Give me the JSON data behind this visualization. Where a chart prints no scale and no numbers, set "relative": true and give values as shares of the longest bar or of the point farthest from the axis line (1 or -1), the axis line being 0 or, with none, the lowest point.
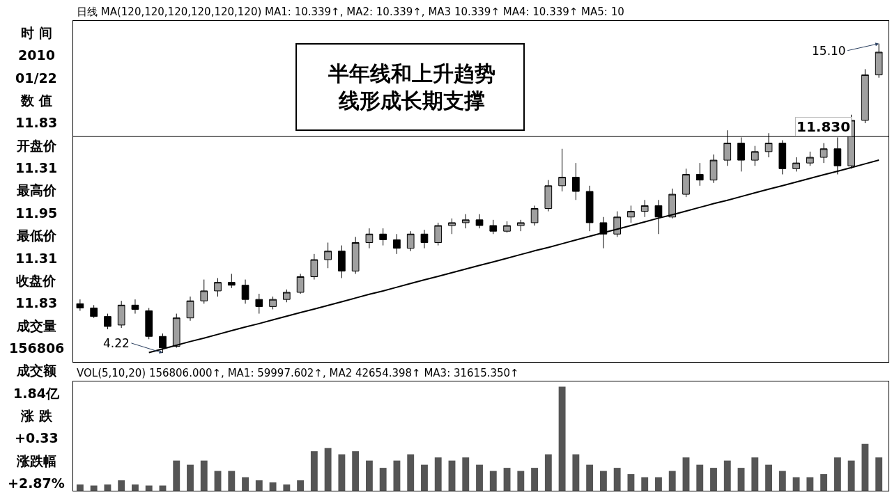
{
  "chart_data": [
    {
      "type": "other",
      "annotations": [
        "时 间",
        "2010",
        "01/22",
        "数 值",
        "11.83",
        "开盘价",
        "11.31",
        "最高价",
        "11.95",
        "最低价",
        "11.31",
        "收盘价",
        "11.83",
        "成交量",
        "156806",
        "成交额",
        "1.84亿",
        "涨 跌",
        "+0.33",
        "涨跌幅",
        "+2.87%"
      ]
    },
    {
      "type": "candlestick",
      "color": "#000000",
      "tick_labels": false,
      "ylim": [
        3.9,
        15.9
      ],
      "categories": [
        null,
        null,
        null,
        null,
        null,
        null,
        null,
        null,
        null,
        null,
        null,
        null,
        null,
        null,
        null,
        null,
        null,
        null,
        null,
        null,
        null,
        null,
        null,
        null,
        null,
        null,
        null,
        null,
        null,
        null,
        null,
        null,
        null,
        null,
        null,
        null,
        null,
        null,
        null,
        null,
        null,
        null,
        null,
        null,
        null,
        null,
        null,
        null,
        null,
        null,
        null,
        null,
        null,
        null,
        null,
        null,
        null,
        null,
        null
      ],
      "ohlc": [
        [
          5.95,
          6.1,
          5.7,
          5.8
        ],
        [
          5.8,
          5.9,
          5.45,
          5.5
        ],
        [
          5.5,
          5.6,
          5.05,
          5.15
        ],
        [
          5.2,
          6.05,
          5.1,
          5.9
        ],
        [
          5.9,
          6.1,
          5.6,
          5.75
        ],
        [
          5.7,
          5.8,
          4.7,
          4.8
        ],
        [
          4.8,
          4.9,
          4.22,
          4.4
        ],
        [
          4.45,
          5.6,
          4.4,
          5.45
        ],
        [
          5.45,
          6.2,
          5.35,
          6.05
        ],
        [
          6.05,
          6.8,
          5.95,
          6.4
        ],
        [
          6.4,
          6.85,
          6.2,
          6.7
        ],
        [
          6.7,
          7.0,
          6.5,
          6.6
        ],
        [
          6.6,
          6.8,
          5.95,
          6.1
        ],
        [
          6.1,
          6.3,
          5.6,
          5.85
        ],
        [
          5.85,
          6.2,
          5.75,
          6.1
        ],
        [
          6.1,
          6.45,
          6.0,
          6.35
        ],
        [
          6.35,
          7.0,
          6.3,
          6.9
        ],
        [
          6.9,
          7.7,
          6.8,
          7.5
        ],
        [
          7.5,
          8.1,
          7.2,
          7.8
        ],
        [
          7.8,
          8.0,
          6.85,
          7.1
        ],
        [
          7.1,
          8.3,
          7.0,
          8.1
        ],
        [
          8.1,
          8.6,
          7.9,
          8.4
        ],
        [
          8.4,
          8.6,
          8.0,
          8.2
        ],
        [
          8.2,
          8.4,
          7.7,
          7.9
        ],
        [
          7.9,
          8.5,
          7.8,
          8.4
        ],
        [
          8.4,
          8.55,
          7.9,
          8.1
        ],
        [
          8.1,
          8.8,
          8.0,
          8.7
        ],
        [
          8.7,
          8.95,
          8.4,
          8.8
        ],
        [
          8.8,
          9.1,
          8.6,
          8.9
        ],
        [
          8.9,
          9.1,
          8.6,
          8.7
        ],
        [
          8.7,
          8.9,
          8.4,
          8.5
        ],
        [
          8.5,
          8.85,
          8.45,
          8.7
        ],
        [
          8.7,
          8.9,
          8.5,
          8.8
        ],
        [
          8.8,
          9.4,
          8.7,
          9.3
        ],
        [
          9.3,
          10.3,
          9.2,
          10.1
        ],
        [
          10.1,
          11.4,
          9.9,
          10.4
        ],
        [
          10.4,
          10.9,
          9.6,
          9.9
        ],
        [
          9.9,
          10.1,
          8.5,
          8.8
        ],
        [
          8.8,
          9.0,
          7.9,
          8.4
        ],
        [
          8.4,
          9.2,
          8.3,
          9.0
        ],
        [
          9.0,
          9.4,
          8.8,
          9.2
        ],
        [
          9.2,
          9.6,
          9.0,
          9.4
        ],
        [
          9.4,
          9.6,
          8.4,
          9.0
        ],
        [
          9.0,
          10.0,
          8.95,
          9.8
        ],
        [
          9.8,
          10.7,
          9.7,
          10.5
        ],
        [
          10.5,
          10.9,
          10.1,
          10.3
        ],
        [
          10.3,
          11.2,
          10.2,
          11.0
        ],
        [
          11.0,
          12.05,
          10.8,
          11.6
        ],
        [
          11.6,
          11.8,
          10.6,
          11.0
        ],
        [
          11.0,
          11.5,
          10.8,
          11.3
        ],
        [
          11.3,
          11.95,
          11.1,
          11.6
        ],
        [
          11.6,
          11.7,
          10.5,
          10.7
        ],
        [
          10.7,
          11.1,
          10.6,
          10.9
        ],
        [
          10.9,
          11.3,
          10.8,
          11.1
        ],
        [
          11.1,
          11.6,
          10.9,
          11.4
        ],
        [
          11.4,
          11.8,
          10.5,
          10.8
        ],
        [
          10.8,
          12.6,
          10.7,
          12.4
        ],
        [
          12.4,
          14.2,
          12.3,
          14.0
        ],
        [
          14.0,
          15.1,
          13.9,
          14.8
        ]
      ],
      "series": [
        {
          "type": "line",
          "color": "#000000",
          "values": [
            null,
            null,
            null,
            null,
            null,
            4.23,
            4.36,
            4.49,
            4.62,
            4.74,
            4.87,
            5.0,
            5.13,
            5.25,
            5.38,
            5.51,
            5.64,
            5.76,
            5.89,
            6.02,
            6.15,
            6.28,
            6.4,
            6.53,
            6.66,
            6.79,
            6.91,
            7.04,
            7.17,
            7.3,
            7.42,
            7.55,
            7.68,
            7.81,
            7.93,
            8.06,
            8.19,
            8.32,
            8.45,
            8.57,
            8.7,
            8.83,
            8.96,
            9.08,
            9.21,
            9.34,
            9.47,
            9.59,
            9.72,
            9.85,
            9.98,
            10.1,
            10.23,
            10.36,
            10.49,
            10.61,
            10.74,
            10.87,
            11.0
          ]
        }
      ],
      "ref_lines": [
        {
          "axis": "y",
          "value": 11.83,
          "label": "11.830",
          "color": "#000000"
        }
      ],
      "annotations": [
        "日线 MA(120,120,120,120,120,120) MA1: 10.339↑, MA2: 10.339↑, MA3 10.339↑ MA4: 10.339↑ MA5: 10",
        "半年线和上升趋势",
        "线形成长期支撑",
        "4.22",
        "15.10"
      ]
    },
    {
      "type": "bar",
      "relative": true,
      "color": "#555555",
      "tick_labels": false,
      "categories": [
        null,
        null,
        null,
        null,
        null,
        null,
        null,
        null,
        null,
        null,
        null,
        null,
        null,
        null,
        null,
        null,
        null,
        null,
        null,
        null,
        null,
        null,
        null,
        null,
        null,
        null,
        null,
        null,
        null,
        null,
        null,
        null,
        null,
        null,
        null,
        null,
        null,
        null,
        null,
        null,
        null,
        null,
        null,
        null,
        null,
        null,
        null,
        null,
        null,
        null,
        null,
        null,
        null,
        null,
        null,
        null,
        null,
        null,
        null
      ],
      "values": [
        0.06,
        0.05,
        0.06,
        0.1,
        0.06,
        0.05,
        0.05,
        0.29,
        0.25,
        0.29,
        0.19,
        0.19,
        0.13,
        0.1,
        0.08,
        0.06,
        0.1,
        0.38,
        0.41,
        0.35,
        0.38,
        0.29,
        0.22,
        0.29,
        0.35,
        0.25,
        0.32,
        0.29,
        0.32,
        0.25,
        0.19,
        0.22,
        0.19,
        0.22,
        0.35,
        1,
        0.35,
        0.25,
        0.19,
        0.22,
        0.16,
        0.13,
        0.13,
        0.19,
        0.32,
        0.25,
        0.22,
        0.29,
        0.22,
        0.32,
        0.25,
        0.19,
        0.13,
        0.13,
        0.16,
        0.32,
        0.29,
        0.45,
        0.32
      ],
      "annotations": [
        "VOL(5,10,20) 156806.000↑, MA1: 59997.602↑, MA2 42654.398↑ MA3: 31615.350↑"
      ]
    }
  ]
}
